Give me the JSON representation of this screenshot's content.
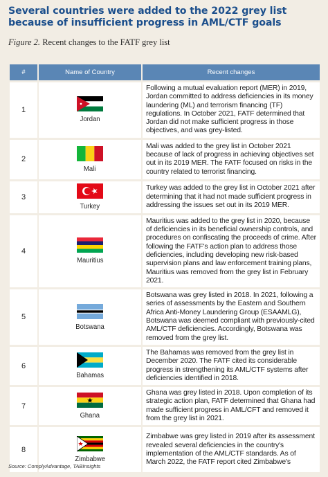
{
  "title": "Several countries were added to the 2022 grey list because of insufficient progress in AML/CTF goals",
  "caption": {
    "figure_label": "Figure 2.",
    "text": "Recent changes to the FATF grey list"
  },
  "table": {
    "headers": [
      "#",
      "Name of Country",
      "Recent changes"
    ],
    "rows": [
      {
        "num": "1",
        "country": "Jordan",
        "flag": "jordan-flag-icon",
        "change": "Following a mutual evaluation report (MER) in 2019, Jordan committed to address deficiencies in its money laundering (ML) and terrorism financing (TF) regulations. In October 2021, FATF determined that Jordan did not make sufficient progress in those objectives, and was grey-listed."
      },
      {
        "num": "2",
        "country": "Mali",
        "flag": "mali-flag-icon",
        "change": "Mali was added to the grey list in October 2021 because of lack of progress in achieving objectives set out in its 2019 MER. The FATF focused on risks in the country related to terrorist financing."
      },
      {
        "num": "3",
        "country": "Turkey",
        "flag": "turkey-flag-icon",
        "change": "Turkey was added to the grey list in October 2021 after determining that it had not made sufficient progress in addressing the issues set out in its 2019 MER."
      },
      {
        "num": "4",
        "country": "Mauritius",
        "flag": "mauritius-flag-icon",
        "change": "Mauritius was added to the grey list in 2020, because of deficiencies in its beneficial ownership controls, and procedures on confiscating the proceeds of crime. After following the FATF's action plan to address those deficiencies, including developing new risk-based supervision plans and law enforcement training plans, Mauritius was removed from the grey list in February 2021."
      },
      {
        "num": "5",
        "country": "Botswana",
        "flag": "botswana-flag-icon",
        "change": "Botswana was grey listed in 2018. In 2021, following a series of assessments by the Eastern and Southern Africa Anti-Money Laundering Group (ESAAMLG), Botswana was deemed compliant with previously-cited AML/CTF deficiencies. Accordingly, Botswana was removed from the grey list."
      },
      {
        "num": "6",
        "country": "Bahamas",
        "flag": "bahamas-flag-icon",
        "change": "The Bahamas was removed from the grey list in December 2020. The FATF cited its considerable progress in strengthening its AML/CTF systems after deficiencies identified in 2018."
      },
      {
        "num": "7",
        "country": "Ghana",
        "flag": "ghana-flag-icon",
        "change": "Ghana was grey listed in 2018. Upon completion of its strategic action plan, FATF determined that Ghana had made sufficient progress in  AML/CFT and removed it from the grey list in 2021."
      },
      {
        "num": "8",
        "country": "Zimbabwe",
        "flag": "zimbabwe-flag-icon",
        "change": "Zimbabwe was grey listed in 2019 after its assessment revealed several deficiencies in the country's implementation of the AML/CTF standards. As of March 2022, the FATF report cited Zimbabwe's"
      }
    ]
  },
  "source": "Source: ComplyAdvantage, TABInsights",
  "colors": {
    "title": "#1c4f8c",
    "header_bg": "#5a86b5",
    "page_bg": "#f2ede4"
  }
}
